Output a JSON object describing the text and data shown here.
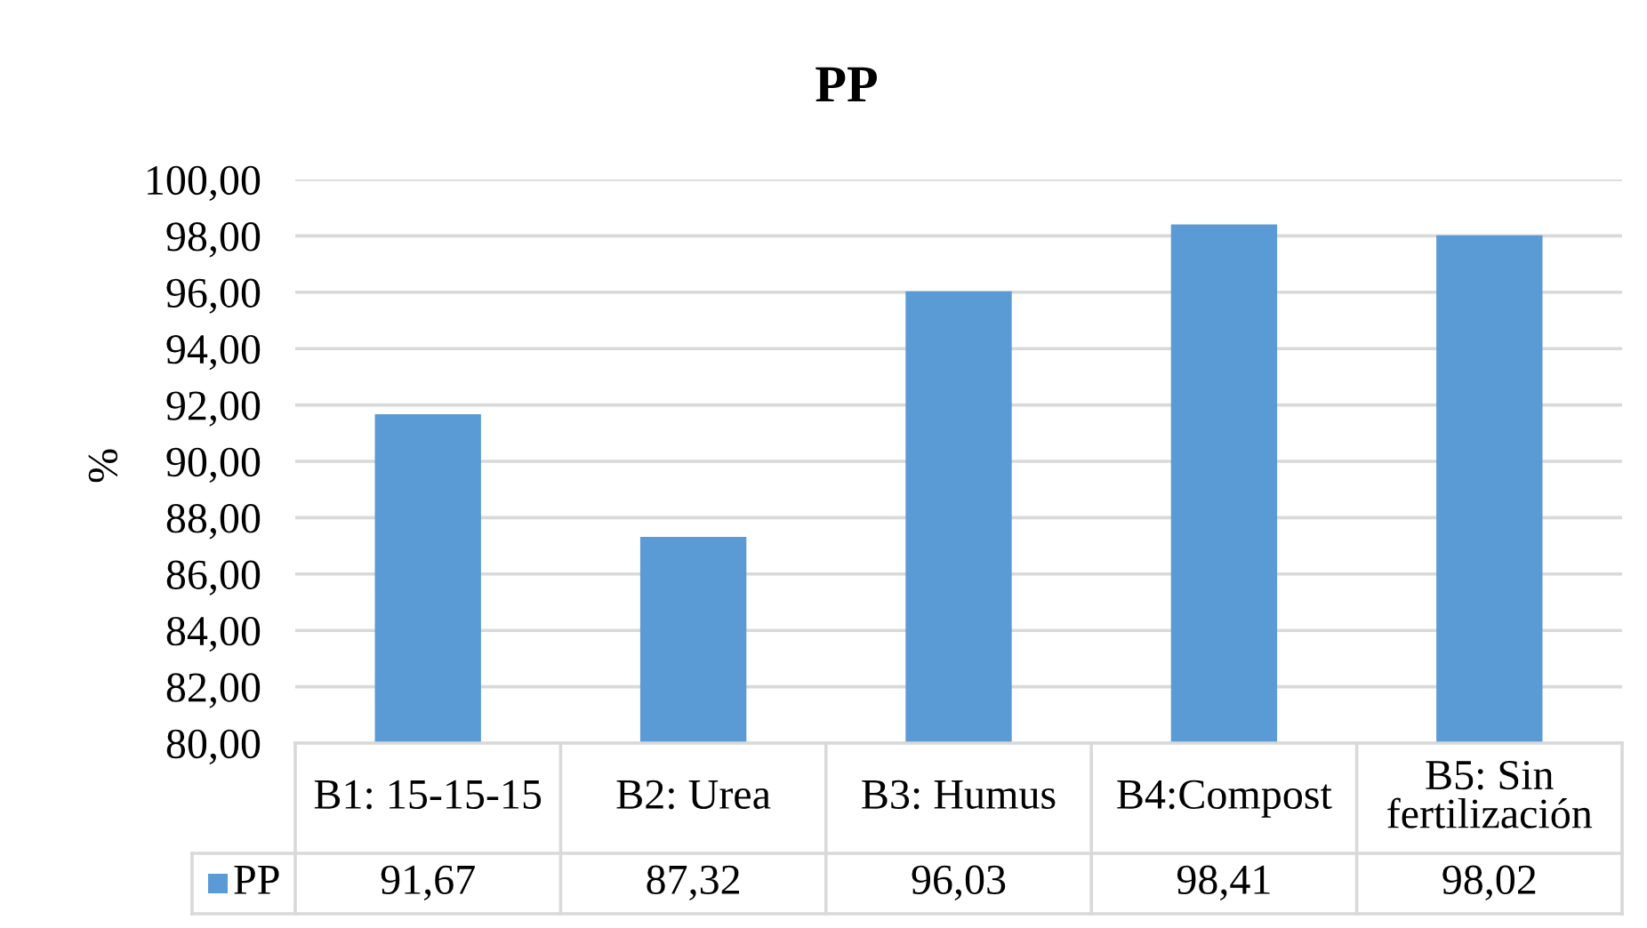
{
  "chart_data": {
    "type": "bar",
    "title": "PP",
    "ylabel": "%",
    "categories": [
      "B1: 15-15-15",
      "B2: Urea",
      "B3: Humus",
      "B4:Compost",
      "B5: Sin fertilización"
    ],
    "series": [
      {
        "name": "PP",
        "color": "#5b9bd5",
        "values": [
          91.67,
          87.32,
          96.03,
          98.41,
          98.02
        ],
        "value_labels": [
          "91,67",
          "87,32",
          "96,03",
          "98,41",
          "98,02"
        ]
      }
    ],
    "ylim": [
      80,
      100
    ],
    "yticks": [
      {
        "value": 80,
        "label": "80,00"
      },
      {
        "value": 82,
        "label": "82,00"
      },
      {
        "value": 84,
        "label": "84,00"
      },
      {
        "value": 86,
        "label": "86,00"
      },
      {
        "value": 88,
        "label": "88,00"
      },
      {
        "value": 90,
        "label": "90,00"
      },
      {
        "value": 92,
        "label": "92,00"
      },
      {
        "value": 94,
        "label": "94,00"
      },
      {
        "value": 96,
        "label": "96,00"
      },
      {
        "value": 98,
        "label": "98,00"
      },
      {
        "value": 100,
        "label": "100,00"
      }
    ],
    "grid": "y",
    "legend": "bottom"
  }
}
